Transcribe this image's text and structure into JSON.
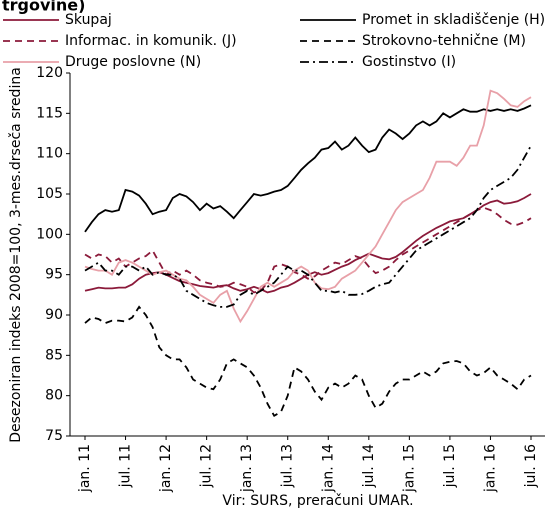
{
  "chart_data": {
    "type": "line",
    "title": "trgovine)",
    "y_label": "Desezoniran indeks 2008=100, 3-mes.drseča sredina",
    "source": "Vir: SURS, preračuni UMAR.",
    "categories": [
      "jan. 11",
      null,
      null,
      null,
      null,
      null,
      "jul. 11",
      null,
      null,
      null,
      null,
      null,
      "jan. 12",
      null,
      null,
      null,
      null,
      null,
      "jul. 12",
      null,
      null,
      null,
      null,
      null,
      "jan. 13",
      null,
      null,
      null,
      null,
      null,
      "jul. 13",
      null,
      null,
      null,
      null,
      null,
      "jan. 14",
      null,
      null,
      null,
      null,
      null,
      "jul. 14",
      null,
      null,
      null,
      null,
      null,
      "jan. 15",
      null,
      null,
      null,
      null,
      null,
      "jul. 15",
      null,
      null,
      null,
      null,
      null,
      "jan. 16",
      null,
      null,
      null,
      null,
      null,
      "jul. 16"
    ],
    "ylim": [
      75,
      120
    ],
    "yticks": [
      75,
      80,
      85,
      90,
      95,
      100,
      105,
      110,
      115,
      120
    ],
    "series": [
      {
        "name": "Skupaj",
        "color": "#8b1a3a",
        "style": "solid",
        "values": [
          93,
          93.2,
          93.4,
          93.3,
          93.3,
          93.4,
          93.4,
          93.8,
          94.5,
          95,
          95.2,
          95.3,
          95,
          94.6,
          94.2,
          94,
          93.8,
          93.6,
          93.5,
          93.4,
          93.6,
          93.7,
          93.3,
          93,
          93.2,
          93.5,
          93.2,
          92.8,
          93,
          93.4,
          93.6,
          94,
          94.5,
          95,
          95.3,
          95,
          95.2,
          95.6,
          96,
          96.3,
          96.8,
          97.2,
          97.6,
          97.3,
          97,
          96.9,
          97.2,
          97.8,
          98.5,
          99.2,
          99.8,
          100.3,
          100.8,
          101.2,
          101.6,
          101.8,
          102,
          102.5,
          103,
          103.6,
          104,
          104.2,
          103.8,
          103.9,
          104.1,
          104.5,
          105
        ]
      },
      {
        "name": "Promet in skladiščenje (H)",
        "color": "#000000",
        "style": "solid",
        "values": [
          100.3,
          101.5,
          102.5,
          103,
          102.8,
          103,
          105.5,
          105.3,
          104.8,
          103.8,
          102.5,
          102.8,
          103,
          104.5,
          105,
          104.7,
          104,
          103,
          103.8,
          103.2,
          103.5,
          102.8,
          102,
          103,
          104,
          105,
          104.8,
          105,
          105.3,
          105.5,
          106,
          107,
          108,
          108.8,
          109.5,
          110.5,
          110.7,
          111.5,
          110.5,
          111,
          112,
          111,
          110.2,
          110.5,
          112,
          113,
          112.5,
          111.8,
          112.5,
          113.5,
          114,
          113.5,
          114,
          115,
          114.5,
          115,
          115.5,
          115.2,
          115.2,
          115.5,
          115.3,
          115.5,
          115.3,
          115.5,
          115.3,
          115.6,
          116
        ]
      },
      {
        "name": "Informac. in komunik. (J)",
        "color": "#8b1a3a",
        "style": "dashed",
        "values": [
          97.5,
          97,
          97.5,
          97.3,
          96.5,
          97,
          96,
          96.5,
          97,
          97.3,
          98,
          96.5,
          95,
          95.5,
          95,
          95.5,
          95,
          94.3,
          94,
          93.8,
          93.5,
          93.6,
          94,
          93.8,
          93.5,
          92.8,
          93,
          94,
          96,
          96.3,
          96,
          95.3,
          95,
          94.5,
          94.8,
          95.5,
          96,
          96.5,
          96.3,
          96.8,
          97.3,
          97,
          96,
          95.2,
          95.5,
          96,
          96.8,
          97.5,
          98,
          98.5,
          99,
          99.5,
          100,
          100.5,
          101,
          101.5,
          102,
          102.5,
          103,
          103.3,
          103,
          102.5,
          101.8,
          101.3,
          101.2,
          101.5,
          102
        ]
      },
      {
        "name": "Strokovno-tehnične (M)",
        "color": "#000000",
        "style": "dashed",
        "values": [
          89,
          89.7,
          89.5,
          89,
          89.3,
          89.3,
          89.2,
          89.7,
          91,
          90,
          88.5,
          86,
          85,
          84.5,
          84.5,
          83.5,
          82,
          81.5,
          81,
          80.8,
          82,
          84,
          84.5,
          84,
          83.5,
          82.5,
          81,
          79,
          77.5,
          78,
          80,
          83.5,
          83,
          82,
          80.5,
          79.5,
          81,
          81.5,
          81,
          81.5,
          82.5,
          82,
          80,
          78.5,
          79,
          80.5,
          81.5,
          82,
          82,
          82.5,
          83,
          82.5,
          83,
          84,
          84.2,
          84.3,
          84,
          83,
          82.5,
          82.8,
          83.5,
          82.5,
          82,
          81.5,
          80.8,
          82,
          82.5
        ]
      },
      {
        "name": "Druge poslovne (N)",
        "color": "#e8a0a8",
        "style": "solid",
        "values": [
          96,
          95.7,
          95.5,
          95.5,
          95,
          96.5,
          96.8,
          96.5,
          96,
          95.5,
          95,
          95.3,
          95.5,
          95,
          94.5,
          94.3,
          93.5,
          92.5,
          92,
          91.5,
          92.5,
          93,
          90.8,
          89.2,
          90.5,
          92,
          93.5,
          94,
          93.5,
          94,
          94.5,
          95.5,
          96,
          95.5,
          94,
          93.3,
          93.2,
          93.5,
          94.5,
          95,
          95.5,
          96.5,
          97.5,
          98.5,
          100,
          101.5,
          103,
          104,
          104.5,
          105,
          105.5,
          107,
          109,
          109,
          109,
          108.5,
          109.5,
          111,
          111,
          113.5,
          117.8,
          117.5,
          116.8,
          116,
          115.8,
          116.5,
          117
        ]
      },
      {
        "name": "Gostinstvo (I)",
        "color": "#000000",
        "style": "dashdot",
        "values": [
          95.5,
          96,
          96.5,
          95.5,
          95.5,
          95,
          96,
          96,
          95.5,
          96,
          95,
          95.3,
          95,
          95,
          94.5,
          93,
          92.5,
          92,
          91.5,
          91.2,
          91,
          91,
          91.3,
          92.5,
          93,
          92.5,
          93,
          93.5,
          94,
          95,
          96,
          95.5,
          95.5,
          95,
          94,
          93,
          93,
          92.8,
          93,
          92.5,
          92.5,
          92.6,
          93,
          93.5,
          93.8,
          94,
          95,
          96,
          97,
          98,
          98.5,
          99,
          99.5,
          100,
          100.5,
          101,
          101.5,
          102,
          103,
          104.5,
          105.5,
          106,
          106.5,
          107,
          108,
          109.5,
          111
        ]
      }
    ]
  }
}
